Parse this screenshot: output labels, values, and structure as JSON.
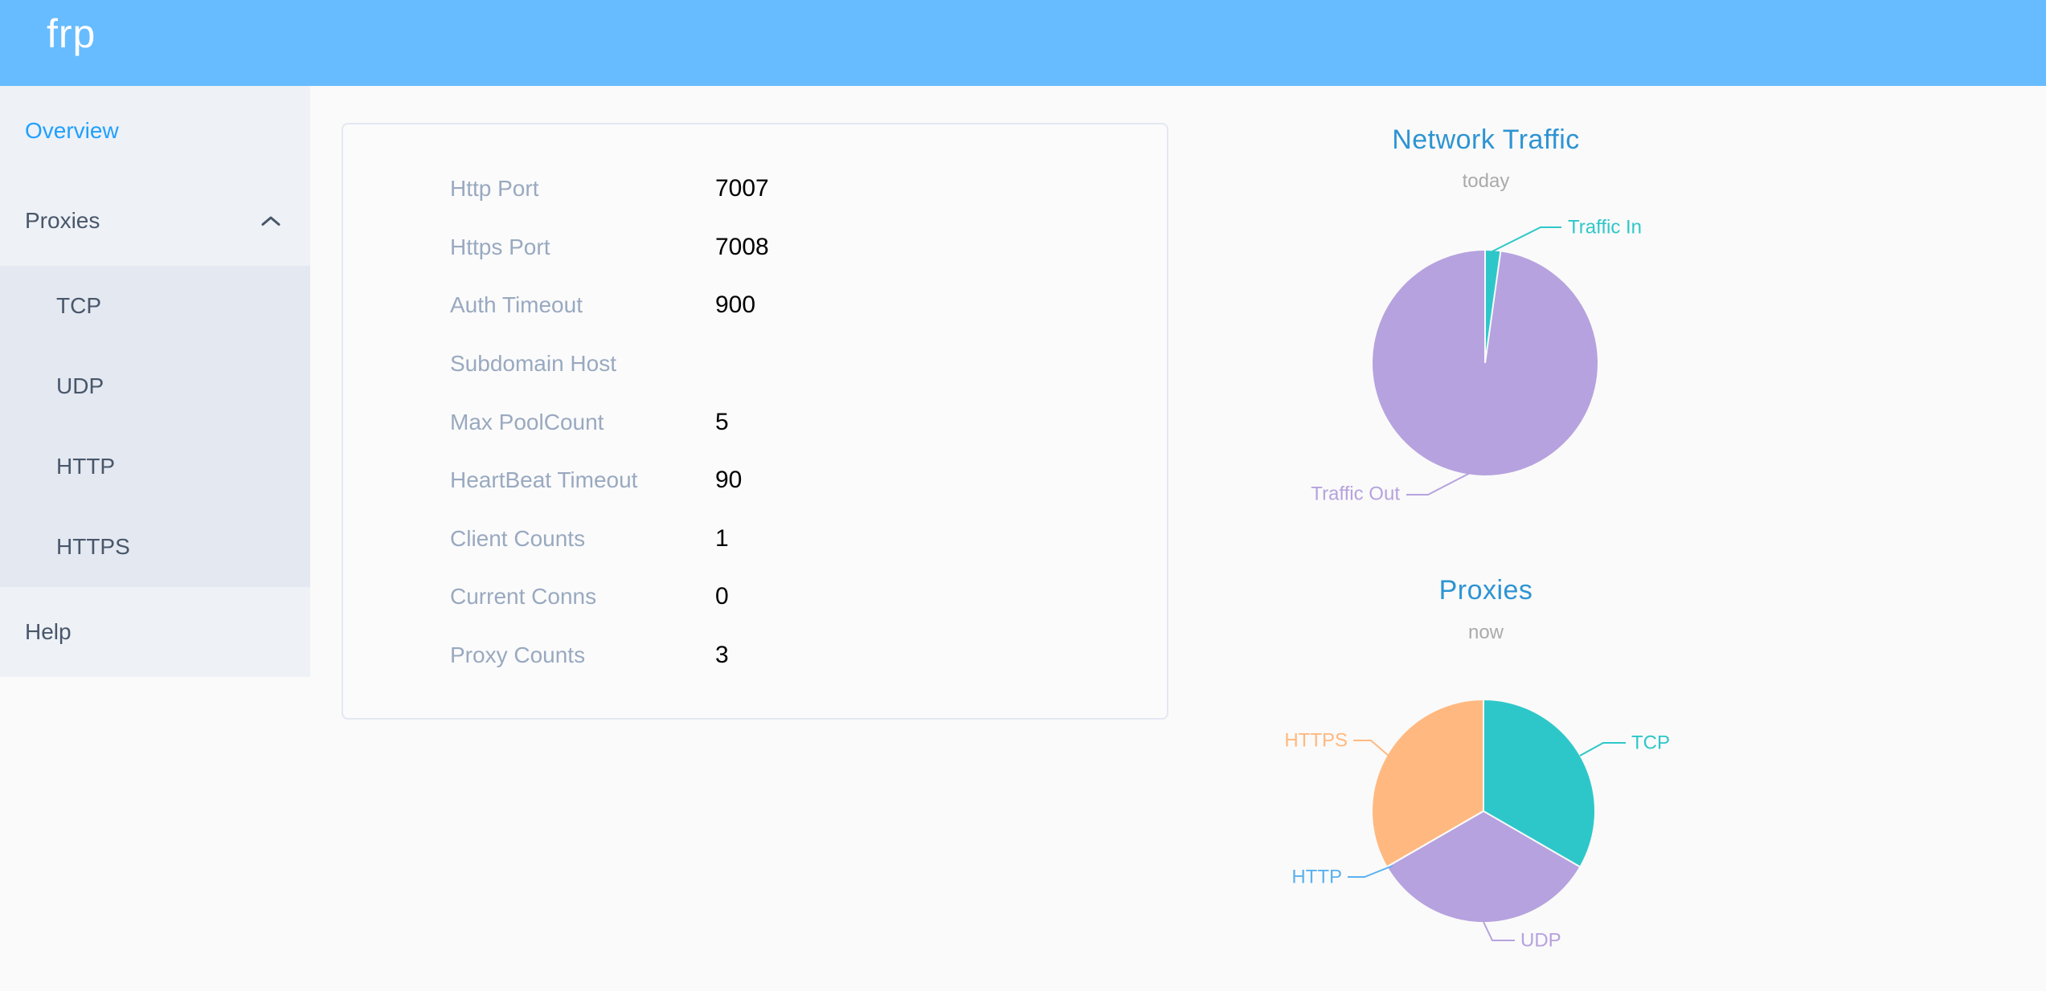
{
  "header": {
    "logo": "frp"
  },
  "sidebar": {
    "items": [
      {
        "label": "Overview",
        "active": true
      },
      {
        "label": "Proxies",
        "expanded": true,
        "children": [
          "TCP",
          "UDP",
          "HTTP",
          "HTTPS"
        ]
      },
      {
        "label": "Help"
      }
    ]
  },
  "overview": {
    "rows": [
      {
        "label": "Http Port",
        "value": "7007"
      },
      {
        "label": "Https Port",
        "value": "7008"
      },
      {
        "label": "Auth Timeout",
        "value": "900"
      },
      {
        "label": "Subdomain Host",
        "value": ""
      },
      {
        "label": "Max PoolCount",
        "value": "5"
      },
      {
        "label": "HeartBeat Timeout",
        "value": "90"
      },
      {
        "label": "Client Counts",
        "value": "1"
      },
      {
        "label": "Current Conns",
        "value": "0"
      },
      {
        "label": "Proxy Counts",
        "value": "3"
      }
    ]
  },
  "chart_data": [
    {
      "type": "pie",
      "title": "Network Traffic",
      "subtitle": "today",
      "legend_position": "none",
      "values_unit": "percent-estimated",
      "series": [
        {
          "name": "Traffic In",
          "value": 2.2,
          "color": "#2ec7c9"
        },
        {
          "name": "Traffic Out",
          "value": 97.8,
          "color": "#b6a2de"
        }
      ]
    },
    {
      "type": "pie",
      "title": "Proxies",
      "subtitle": "now",
      "legend_position": "none",
      "values_unit": "count",
      "series": [
        {
          "name": "TCP",
          "value": 1,
          "color": "#2ec7c9"
        },
        {
          "name": "UDP",
          "value": 1,
          "color": "#b6a2de"
        },
        {
          "name": "HTTP",
          "value": 0,
          "color": "#5ab1ef"
        },
        {
          "name": "HTTPS",
          "value": 1,
          "color": "#ffb980"
        }
      ]
    }
  ],
  "colors": {
    "header_bg": "#67bcff",
    "active_menu": "#20a0ff",
    "chart_title": "#2e94d2",
    "sidebar_bg": "#eef1f6",
    "submenu_bg": "#e4e8f1"
  }
}
